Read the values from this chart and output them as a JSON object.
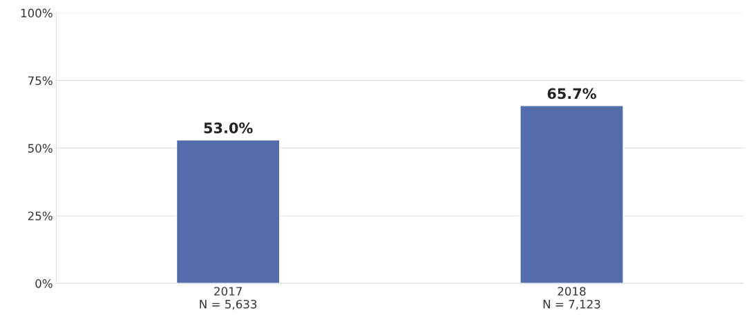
{
  "chart_data": {
    "type": "bar",
    "categories": [
      "2017\nN = 5,633",
      "2018\nN = 7,123"
    ],
    "values": [
      53.0,
      65.7
    ],
    "value_labels": [
      "53.0%",
      "65.7%"
    ],
    "color": "#4466bb",
    "ylim": [
      0,
      100
    ],
    "yticks": [
      {
        "value": 0,
        "label": "0%"
      },
      {
        "value": 25,
        "label": "25%"
      },
      {
        "value": 50,
        "label": "50%"
      },
      {
        "value": 75,
        "label": "75%"
      },
      {
        "value": 100,
        "label": "100%"
      }
    ],
    "grid": "y"
  }
}
